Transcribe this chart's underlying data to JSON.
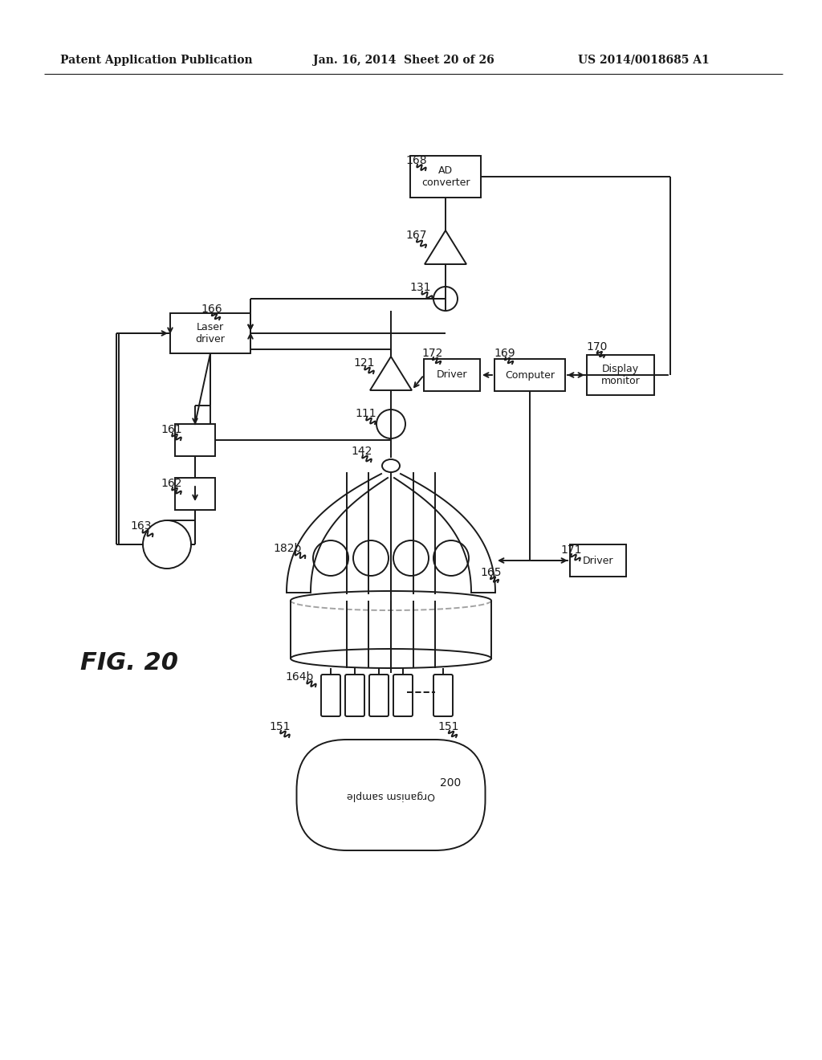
{
  "bg_color": "#ffffff",
  "line_color": "#1a1a1a",
  "header_text": "Patent Application Publication",
  "header_date": "Jan. 16, 2014  Sheet 20 of 26",
  "header_patent": "US 2014/0018685 A1"
}
